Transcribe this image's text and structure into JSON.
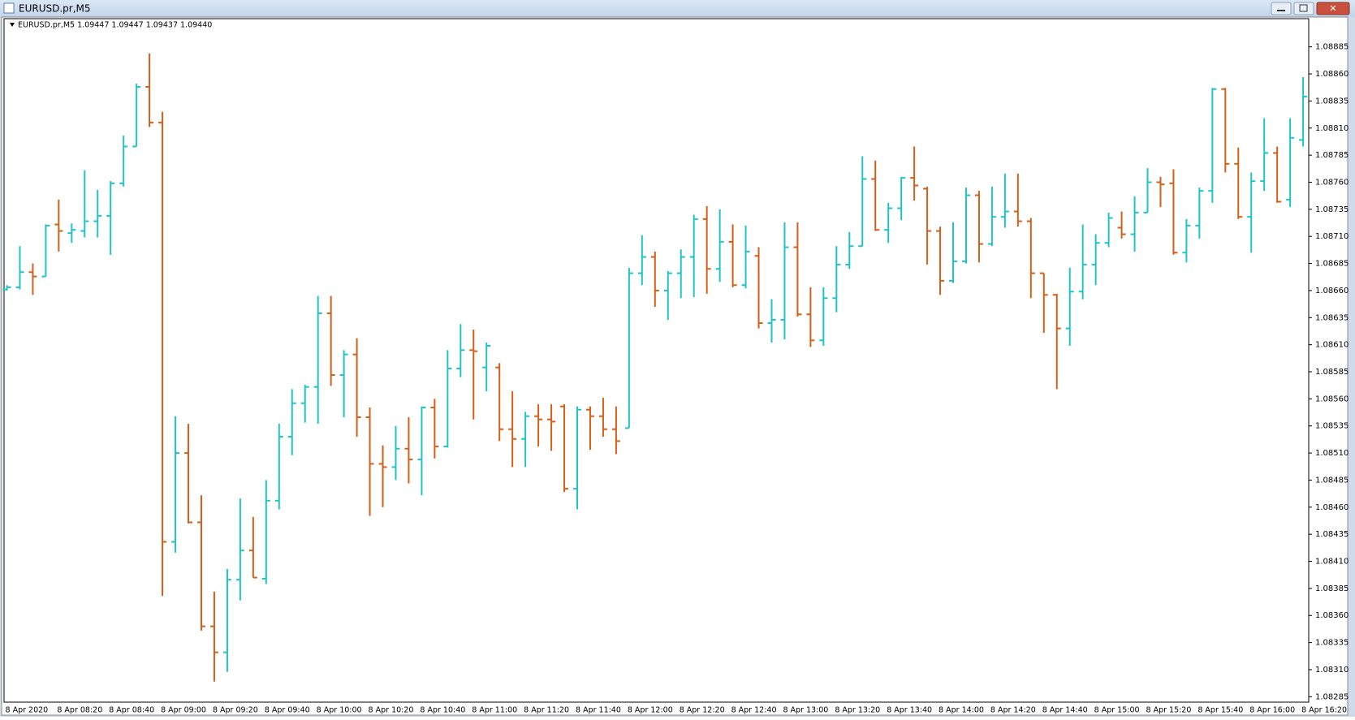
{
  "window_title": "EURUSD.pr,M5",
  "chart_data": {
    "type": "ohlc",
    "header": "EURUSD.pr,M5  1.09447 1.09447 1.09437 1.09440",
    "up_color": "#1fc3c9",
    "down_color": "#d35f19",
    "grid": false,
    "categories": [
      "8 Apr 2020",
      null,
      null,
      null,
      "8 Apr 08:20",
      null,
      null,
      null,
      "8 Apr 08:40",
      null,
      null,
      null,
      "8 Apr 09:00",
      null,
      null,
      null,
      "8 Apr 09:20",
      null,
      null,
      null,
      "8 Apr 09:40",
      null,
      null,
      null,
      "8 Apr 10:00",
      null,
      null,
      null,
      "8 Apr 10:20",
      null,
      null,
      null,
      "8 Apr 10:40",
      null,
      null,
      null,
      "8 Apr 11:00",
      null,
      null,
      null,
      "8 Apr 11:20",
      null,
      null,
      null,
      "8 Apr 11:40",
      null,
      null,
      null,
      "8 Apr 12:00",
      null,
      null,
      null,
      "8 Apr 12:20",
      null,
      null,
      null,
      "8 Apr 12:40",
      null,
      null,
      null,
      "8 Apr 13:00",
      null,
      null,
      null,
      "8 Apr 13:20",
      null,
      null,
      null,
      "8 Apr 13:40",
      null,
      null,
      null,
      "8 Apr 14:00",
      null,
      null,
      null,
      "8 Apr 14:20",
      null,
      null,
      null,
      "8 Apr 14:40",
      null,
      null,
      null,
      "8 Apr 15:00",
      null,
      null,
      null,
      "8 Apr 15:20",
      null,
      null,
      null,
      "8 Apr 15:40",
      null,
      null,
      null,
      "8 Apr 16:00",
      null,
      null,
      null,
      "8 Apr 16:20"
    ],
    "open": [
      1.08661,
      1.08663,
      1.08677,
      1.08673,
      1.08721,
      1.08713,
      1.08715,
      1.08724,
      1.08729,
      1.08759,
      1.08793,
      1.08848,
      1.08815,
      1.08428,
      1.0851,
      1.08446,
      1.0835,
      1.08326,
      1.08393,
      1.0842,
      1.08394,
      1.08466,
      1.08525,
      1.08556,
      1.08571,
      1.08639,
      1.08582,
      1.08601,
      1.08543,
      1.085,
      1.08497,
      1.08514,
      1.08504,
      1.08552,
      1.08516,
      1.08588,
      1.08605,
      1.08589,
      1.08589,
      1.08532,
      1.08523,
      1.08544,
      1.08541,
      1.08553,
      1.08477,
      1.0855,
      1.08544,
      1.08532,
      1.08533,
      1.08676,
      1.08691,
      1.0866,
      1.08676,
      1.08691,
      1.08726,
      1.0868,
      1.08705,
      1.08665,
      1.08692,
      1.0863,
      1.08633,
      1.087,
      1.08638,
      1.08614,
      1.08653,
      1.08684,
      1.08701,
      1.08763,
      1.08716,
      1.08736,
      1.08764,
      1.08754,
      1.08715,
      1.08669,
      1.08687,
      1.08748,
      1.08703,
      1.08728,
      1.08733,
      1.08724,
      1.08676,
      1.08656,
      1.08625,
      1.08659,
      1.08684,
      1.08704,
      1.08718,
      1.08712,
      1.08732,
      1.0876,
      1.08759,
      1.08695,
      1.0872,
      1.08752,
      1.08846,
      1.08777,
      1.08728,
      1.08761,
      1.08787,
      1.08744,
      1.08799
    ],
    "high": [
      1.08665,
      1.08701,
      1.08685,
      1.08721,
      1.08744,
      1.08722,
      1.08771,
      1.08753,
      1.08761,
      1.08803,
      1.08851,
      1.08879,
      1.08825,
      1.08544,
      1.08537,
      1.08471,
      1.08382,
      1.08403,
      1.08468,
      1.08451,
      1.08485,
      1.08537,
      1.08569,
      1.08573,
      1.08655,
      1.08655,
      1.08605,
      1.08616,
      1.08552,
      1.08517,
      1.08535,
      1.08543,
      1.08553,
      1.0856,
      1.08605,
      1.08629,
      1.08624,
      1.08612,
      1.08593,
      1.08567,
      1.08548,
      1.08555,
      1.08555,
      1.08555,
      1.08553,
      1.08553,
      1.08561,
      1.08553,
      1.08681,
      1.08711,
      1.08696,
      1.08678,
      1.08698,
      1.0873,
      1.08738,
      1.08735,
      1.08721,
      1.0872,
      1.087,
      1.08652,
      1.08723,
      1.08723,
      1.08663,
      1.08663,
      1.08701,
      1.08714,
      1.08784,
      1.0878,
      1.08741,
      1.08765,
      1.08793,
      1.08756,
      1.08719,
      1.08723,
      1.08755,
      1.08752,
      1.08756,
      1.08768,
      1.08768,
      1.08727,
      1.08676,
      1.08657,
      1.08681,
      1.08721,
      1.08712,
      1.08732,
      1.08733,
      1.08747,
      1.08773,
      1.08765,
      1.08772,
      1.08726,
      1.08755,
      1.08847,
      1.08847,
      1.08792,
      1.08769,
      1.08819,
      1.08793,
      1.08819,
      1.08857
    ],
    "low": [
      1.0866,
      1.08661,
      1.08656,
      1.08673,
      1.08696,
      1.08704,
      1.08709,
      1.08709,
      1.08693,
      1.08756,
      1.08793,
      1.08811,
      1.08378,
      1.08418,
      1.08445,
      1.08346,
      1.08299,
      1.08308,
      1.08374,
      1.08395,
      1.08389,
      1.08458,
      1.08508,
      1.08538,
      1.08537,
      1.08572,
      1.08543,
      1.08525,
      1.08452,
      1.0846,
      1.08485,
      1.08482,
      1.08471,
      1.08505,
      1.08515,
      1.0858,
      1.08541,
      1.08567,
      1.08521,
      1.08497,
      1.08497,
      1.08516,
      1.08512,
      1.08474,
      1.08458,
      1.08513,
      1.08525,
      1.08509,
      1.08533,
      1.08665,
      1.08645,
      1.08633,
      1.08653,
      1.08654,
      1.08657,
      1.08668,
      1.08663,
      1.08662,
      1.08625,
      1.08612,
      1.08615,
      1.08636,
      1.08608,
      1.08609,
      1.0864,
      1.0868,
      1.08701,
      1.08715,
      1.08704,
      1.08725,
      1.08743,
      1.08684,
      1.08656,
      1.08667,
      1.08685,
      1.08686,
      1.08701,
      1.08718,
      1.08719,
      1.08653,
      1.08621,
      1.08569,
      1.08609,
      1.08652,
      1.08665,
      1.087,
      1.08708,
      1.08696,
      1.08732,
      1.08737,
      1.08693,
      1.08686,
      1.08708,
      1.08741,
      1.08769,
      1.08726,
      1.08695,
      1.08752,
      1.08741,
      1.08737,
      1.08793
    ],
    "close": [
      1.08663,
      1.08677,
      1.08673,
      1.0872,
      1.08715,
      1.08716,
      1.08724,
      1.08729,
      1.08759,
      1.08793,
      1.08848,
      1.08815,
      1.08428,
      1.0851,
      1.08446,
      1.0835,
      1.08326,
      1.08393,
      1.0842,
      1.08395,
      1.08466,
      1.08525,
      1.08556,
      1.08571,
      1.08639,
      1.08582,
      1.08601,
      1.08543,
      1.085,
      1.08497,
      1.08514,
      1.08504,
      1.08552,
      1.08516,
      1.08588,
      1.08605,
      1.08604,
      1.08609,
      1.08532,
      1.08523,
      1.08544,
      1.08541,
      1.08539,
      1.08477,
      1.0855,
      1.08544,
      1.08532,
      1.08521,
      1.08676,
      1.08691,
      1.0866,
      1.08676,
      1.08691,
      1.08726,
      1.0868,
      1.08705,
      1.08665,
      1.08696,
      1.0863,
      1.08633,
      1.087,
      1.08638,
      1.08614,
      1.08653,
      1.08684,
      1.08701,
      1.08763,
      1.08716,
      1.08736,
      1.08764,
      1.08757,
      1.08715,
      1.08669,
      1.08687,
      1.08748,
      1.08703,
      1.08728,
      1.08733,
      1.08724,
      1.08676,
      1.08656,
      1.08625,
      1.08659,
      1.08684,
      1.08704,
      1.08727,
      1.08712,
      1.08732,
      1.0876,
      1.08758,
      1.08695,
      1.0872,
      1.08752,
      1.08846,
      1.08777,
      1.08728,
      1.08761,
      1.08787,
      1.08742,
      1.08801,
      1.08839
    ],
    "ylim": [
      1.0828,
      1.08911
    ],
    "yticks": [
      1.08885,
      {
        "value": 1.0886,
        "label": "1.08860"
      },
      1.08835,
      {
        "value": 1.0881,
        "label": "1.08810"
      },
      1.08785,
      {
        "value": 1.0876,
        "label": "1.08760"
      },
      1.08735,
      {
        "value": 1.0871,
        "label": "1.08710"
      },
      1.08685,
      {
        "value": 1.0866,
        "label": "1.08660"
      },
      1.08635,
      {
        "value": 1.0861,
        "label": "1.08610"
      },
      1.08585,
      {
        "value": 1.0856,
        "label": "1.08560"
      },
      1.08535,
      {
        "value": 1.0851,
        "label": "1.08510"
      },
      1.08485,
      {
        "value": 1.0846,
        "label": "1.08460"
      },
      1.08435,
      {
        "value": 1.0841,
        "label": "1.08410"
      },
      1.08385,
      {
        "value": 1.0836,
        "label": "1.08360"
      },
      1.08335,
      {
        "value": 1.0831,
        "label": "1.08310"
      },
      1.08285
    ]
  }
}
